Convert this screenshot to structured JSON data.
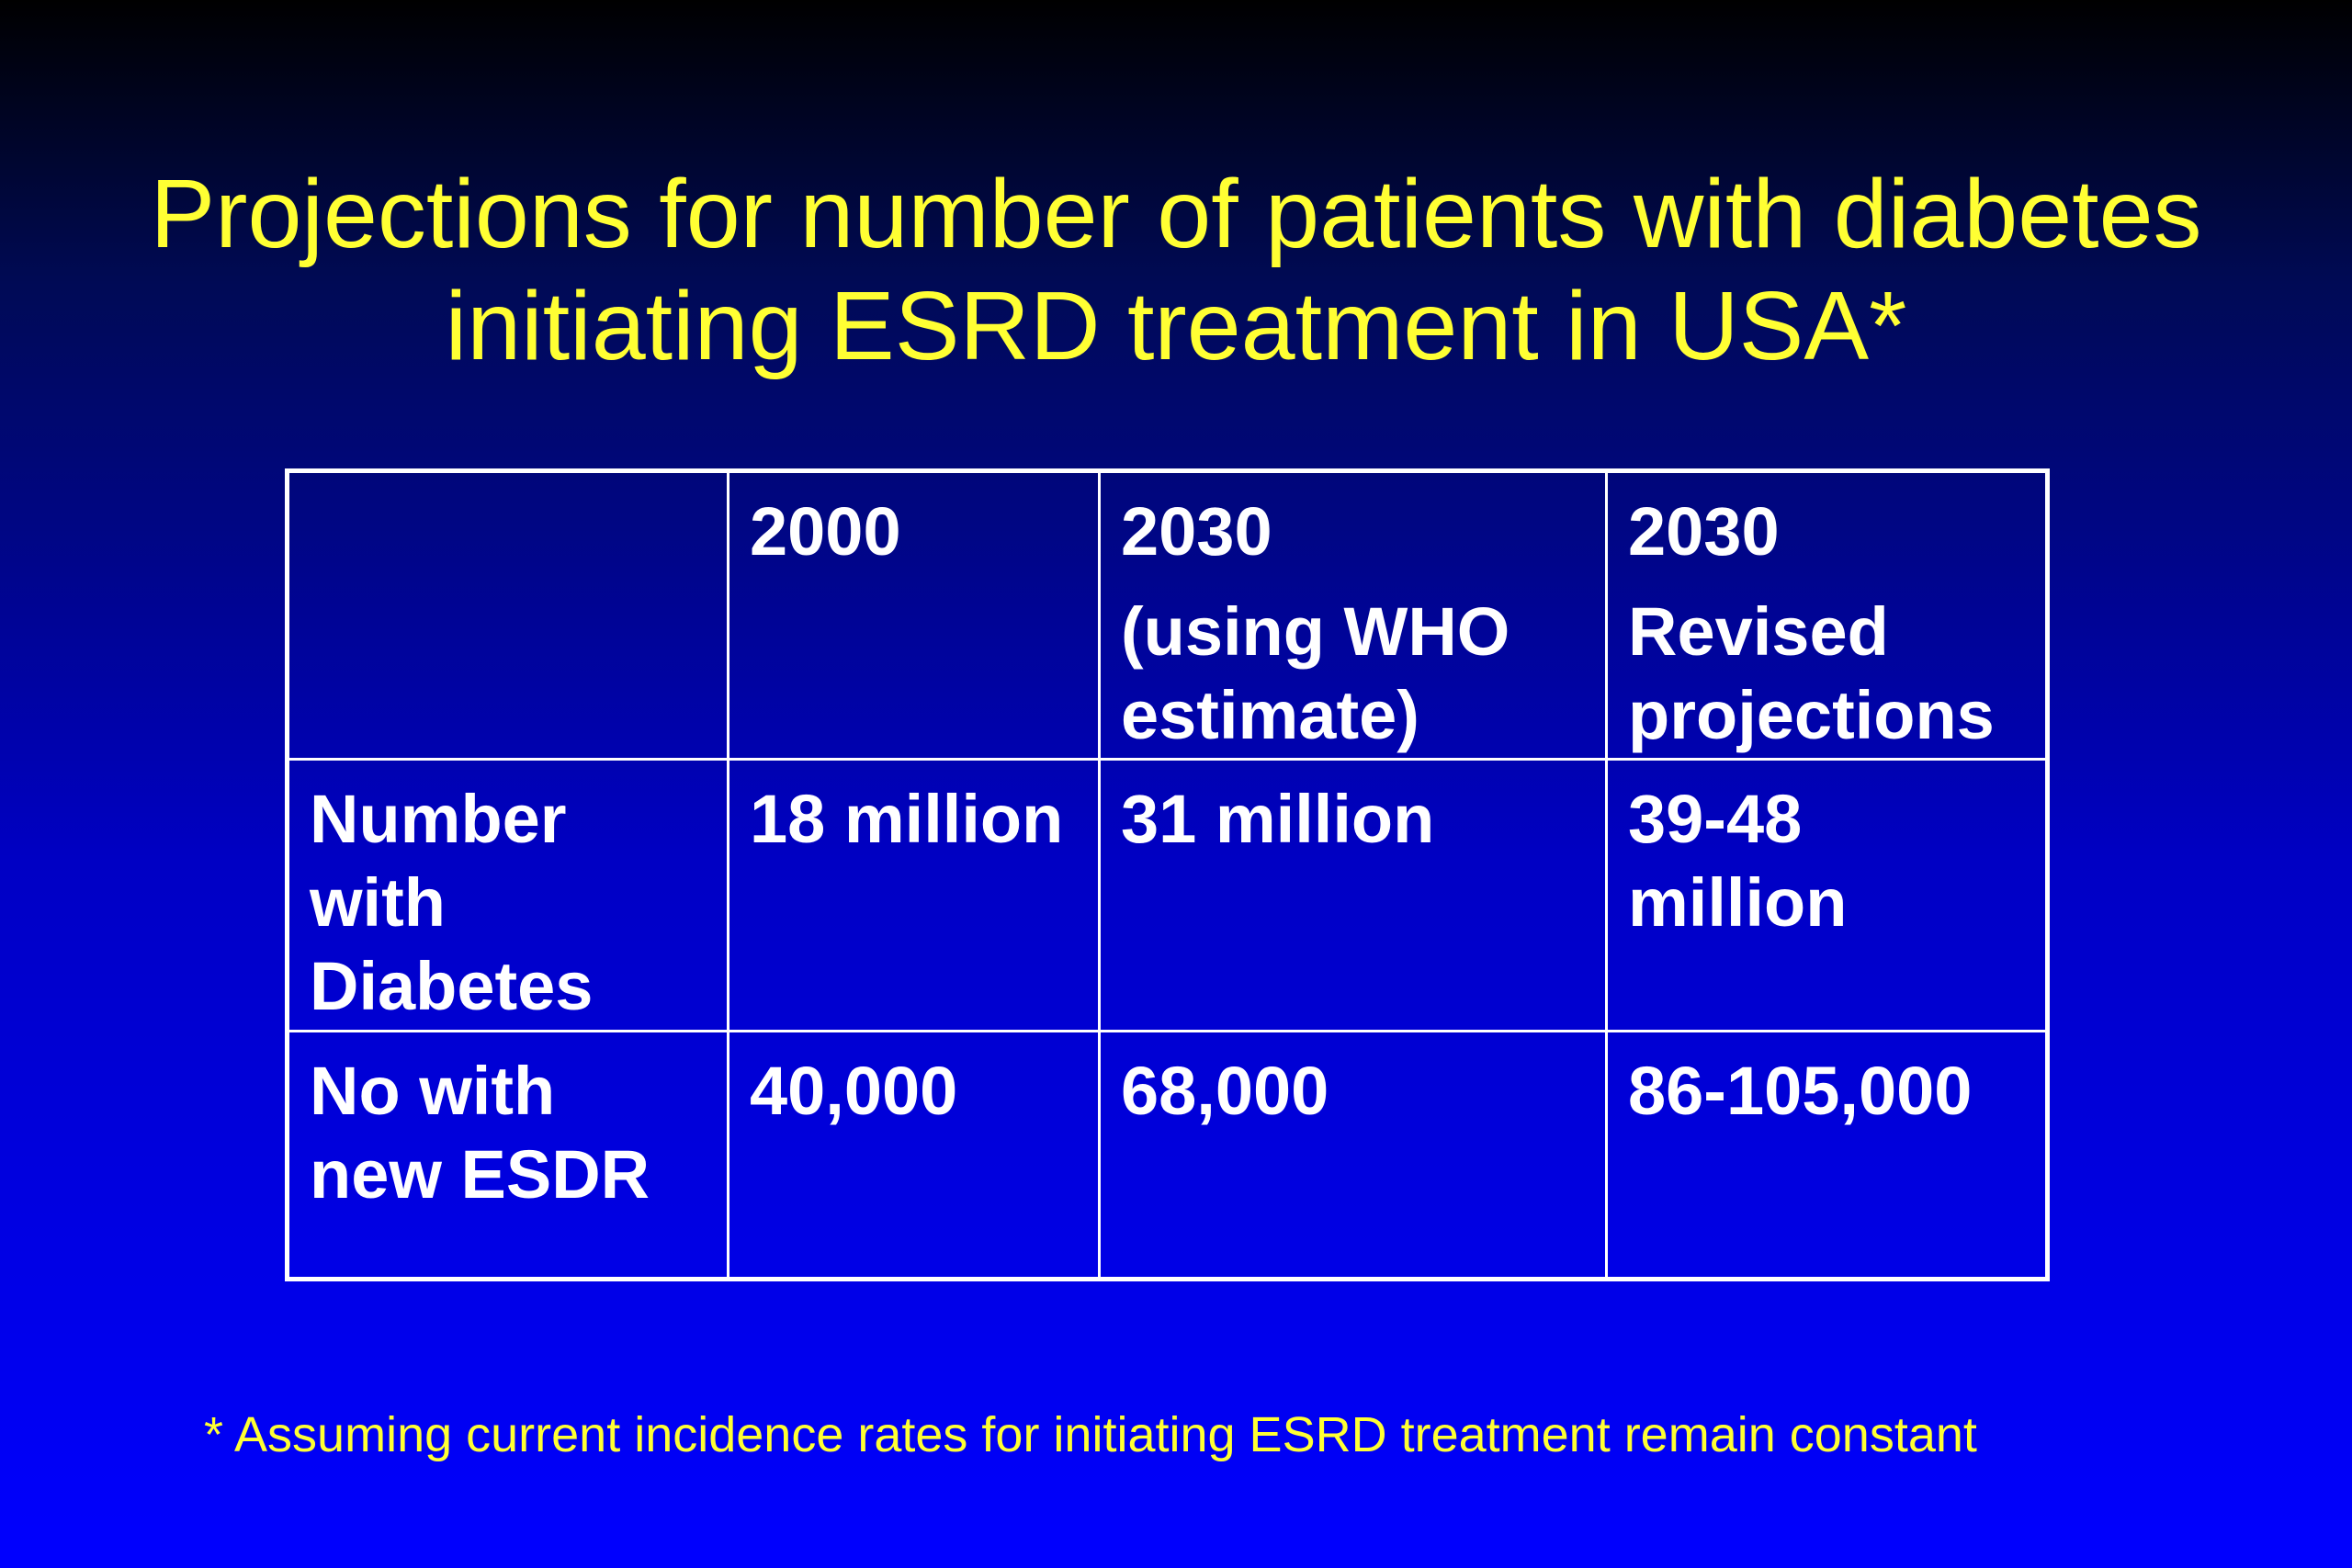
{
  "title": {
    "line1": "Projections for number of patients with diabetes",
    "line2": "initiating ESRD treatment in USA*"
  },
  "table": {
    "header": {
      "col1": {
        "lines": [
          ""
        ]
      },
      "col2": {
        "lines": [
          "2000"
        ]
      },
      "col3": {
        "lines": [
          "2030",
          "(using WHO",
          "estimate)"
        ]
      },
      "col4": {
        "lines": [
          "2030",
          "Revised",
          "projections"
        ]
      }
    },
    "rows": [
      {
        "label": [
          "Number",
          "with",
          "Diabetes"
        ],
        "values": [
          [
            "18 million"
          ],
          [
            "31 million"
          ],
          [
            "39-48",
            "million"
          ]
        ]
      },
      {
        "label": [
          "No with",
          "new ESDR"
        ],
        "values": [
          [
            "40,000"
          ],
          [
            "68,000"
          ],
          [
            "86-105,000"
          ]
        ]
      }
    ]
  },
  "footnote": "* Assuming current incidence rates for initiating ESRD treatment remain constant",
  "colors": {
    "title": "#ffff33",
    "table_text": "#ffffff",
    "footnote": "#ffff33",
    "background_top": "#000000",
    "background_bottom": "#0000ff"
  }
}
